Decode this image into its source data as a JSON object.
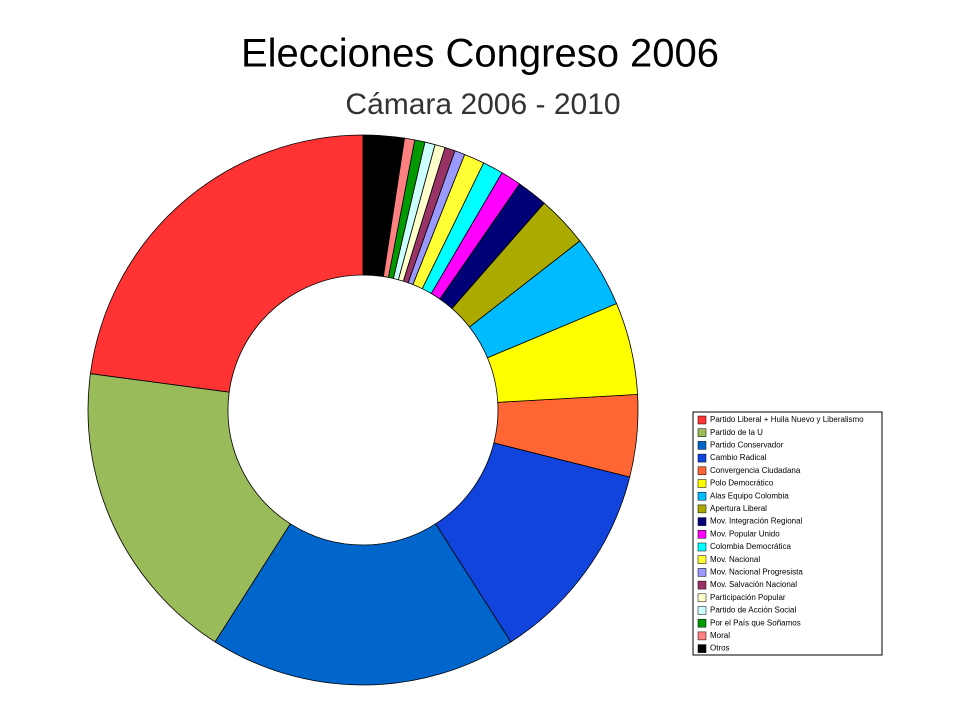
{
  "chart_data": {
    "type": "donut",
    "title": "Elecciones Congreso 2006",
    "subtitle": "Cámara 2006 - 2010",
    "categories": [
      "Partido Liberal + Huila Nuevo y Liberalismo",
      "Partido de la U",
      "Partido Conservador",
      "Cambio Radical",
      "Convergencia Ciudadana",
      "Polo Democrático",
      "Alas Equipo Colombia",
      "Apertura Liberal",
      "Mov. Integración Regional",
      "Mov. Popular Unido",
      "Colombia Democrática",
      "Mov. Nacional",
      "Mov. Nacional Progresista",
      "Mov. Salvación Nacional",
      "Participación Popular",
      "Partido de Acción Social",
      "Por el País que Soñamos",
      "Moral",
      "Otros"
    ],
    "values": [
      38,
      30,
      30,
      20,
      8,
      9,
      7,
      5,
      3,
      2,
      2,
      2,
      1,
      1,
      1,
      1,
      1,
      1,
      4
    ],
    "colors": [
      "#ff3333",
      "#99bb5a",
      "#0066cc",
      "#1144dd",
      "#ff6633",
      "#ffff00",
      "#00bbff",
      "#aaaa00",
      "#000077",
      "#ff00ff",
      "#00ffff",
      "#ffff33",
      "#9999ff",
      "#993366",
      "#ffffcc",
      "#ccffff",
      "#009900",
      "#ff8080",
      "#000000"
    ]
  }
}
